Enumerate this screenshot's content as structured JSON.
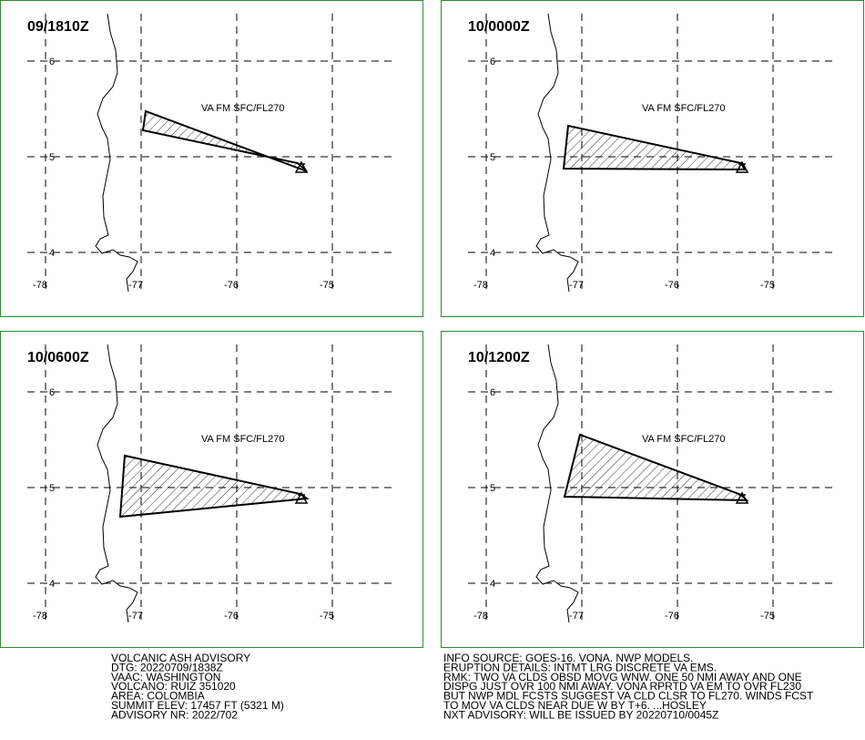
{
  "panels": [
    {
      "time": "09/1810Z",
      "label": "VA FM SFC/FL270"
    },
    {
      "time": "10/0000Z",
      "label": "VA FM SFC/FL270"
    },
    {
      "time": "10/0600Z",
      "label": "VA FM SFC/FL270"
    },
    {
      "time": "10/1200Z",
      "label": "VA FM SFC/FL270"
    }
  ],
  "lat_ticks": [
    6,
    5,
    4
  ],
  "lon_ticks": [
    -78,
    -77,
    -76,
    -75
  ],
  "advisory_left": [
    "VOLCANIC ASH ADVISORY",
    "DTG: 20220709/1838Z",
    "VAAC: WASHINGTON",
    "VOLCANO: RUIZ 351020",
    "AREA: COLOMBIA",
    "SUMMIT ELEV: 17457 FT (5321 M)",
    "ADVISORY NR: 2022/702"
  ],
  "advisory_right": [
    "INFO SOURCE: GOES-16. VONA. NWP MODELS.",
    "ERUPTION DETAILS: INTMT LRG DISCRETE VA EMS.",
    "RMK: TWO VA CLDS OBSD MOVG WNW. ONE 50 NMI AWAY AND ONE",
    "DISPG JUST OVR 100 NMI AWAY. VONA RPRTD VA EM TO OVR FL230",
    "BUT NWP MDL FCSTS SUGGEST VA CLD CLSR TO FL270. WINDS FCST",
    "TO MOV VA CLDS NEAR DUE W BY T+6. ...HOSLEY",
    "NXT ADVISORY: WILL BE ISSUED BY 20220710/0045Z"
  ]
}
